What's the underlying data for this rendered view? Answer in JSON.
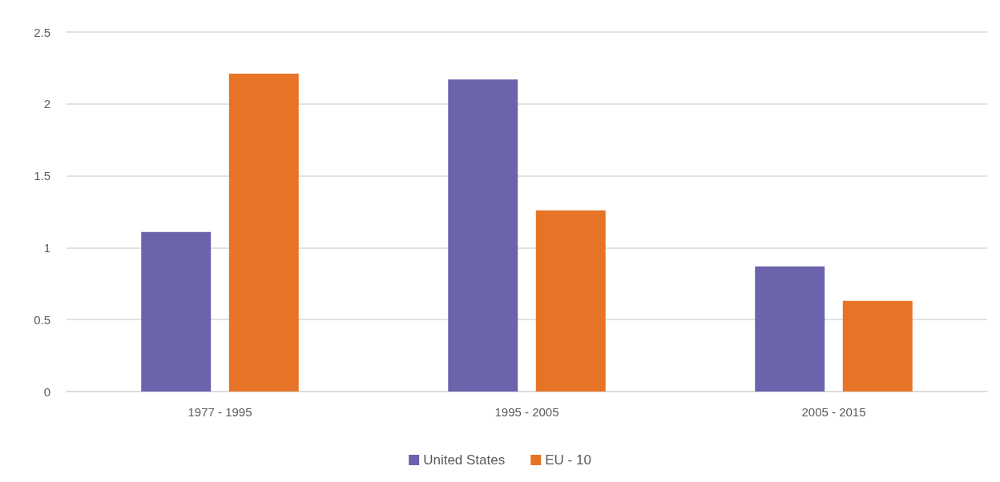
{
  "chart_data": {
    "type": "bar",
    "categories": [
      "1977 - 1995",
      "1995 - 2005",
      "2005 - 2015"
    ],
    "series": [
      {
        "name": "United States",
        "color": "#6b63ab",
        "values": [
          1.11,
          2.17,
          0.87
        ]
      },
      {
        "name": "EU - 10",
        "color": "#e67326",
        "values": [
          2.21,
          1.26,
          0.63
        ]
      }
    ],
    "ylim": [
      0,
      2.5
    ],
    "yticks": [
      0,
      0.5,
      1,
      1.5,
      2,
      2.5
    ],
    "grid": "y",
    "legend": "bottom"
  }
}
